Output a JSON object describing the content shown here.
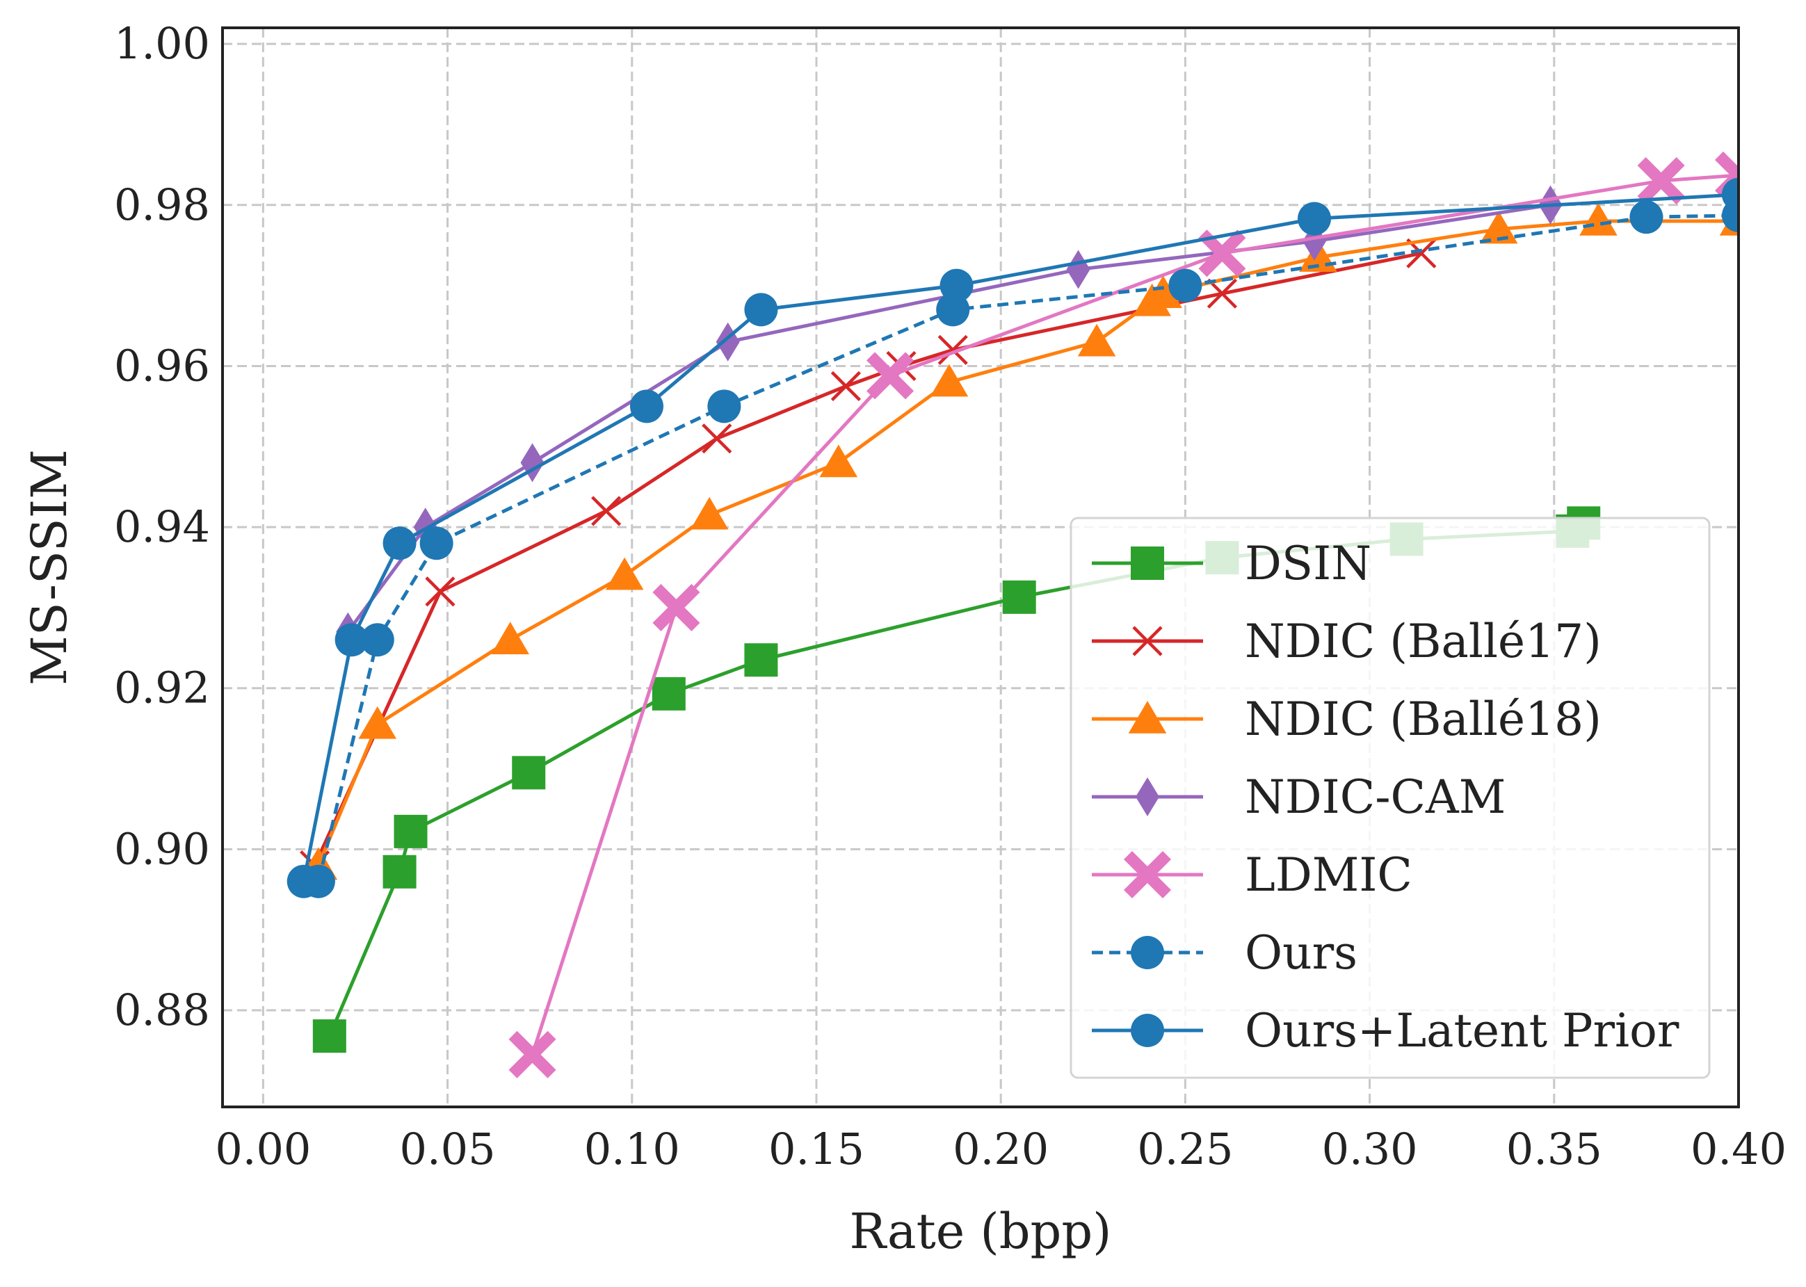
{
  "chart_data": {
    "type": "line",
    "title": "",
    "xlabel": "Rate (bpp)",
    "ylabel": "MS-SSIM",
    "xlim": [
      -0.011,
      0.4
    ],
    "ylim": [
      0.868,
      1.002
    ],
    "xticks": [
      "0.00",
      "0.05",
      "0.10",
      "0.15",
      "0.20",
      "0.25",
      "0.30",
      "0.35",
      "0.40"
    ],
    "yticks": [
      "0.88",
      "0.90",
      "0.92",
      "0.94",
      "0.96",
      "0.98",
      "1.00"
    ],
    "grid": true,
    "legend_position": "lower-right",
    "series": [
      {
        "name": "DSIN",
        "color": "#2ca02c",
        "marker": "square",
        "linestyle": "solid",
        "x": [
          0.018,
          0.037,
          0.04,
          0.072,
          0.11,
          0.135,
          0.205,
          0.26,
          0.31,
          0.355,
          0.358
        ],
        "y": [
          0.8768,
          0.8972,
          0.9022,
          0.9095,
          0.9193,
          0.9235,
          0.9313,
          0.9362,
          0.9385,
          0.9395,
          0.9405
        ]
      },
      {
        "name": "NDIC (Ballé17)",
        "color": "#d62728",
        "marker": "x",
        "linestyle": "solid",
        "x": [
          0.014,
          0.048,
          0.093,
          0.123,
          0.158,
          0.173,
          0.187,
          0.26,
          0.314
        ],
        "y": [
          0.898,
          0.932,
          0.942,
          0.951,
          0.9575,
          0.96,
          0.962,
          0.969,
          0.974
        ]
      },
      {
        "name": "NDIC (Ballé18)",
        "color": "#ff7f0e",
        "marker": "triangle",
        "linestyle": "solid",
        "x": [
          0.015,
          0.031,
          0.067,
          0.098,
          0.121,
          0.156,
          0.186,
          0.226,
          0.241,
          0.244,
          0.286,
          0.335,
          0.362,
          0.4
        ],
        "y": [
          0.898,
          0.9155,
          0.926,
          0.934,
          0.9415,
          0.948,
          0.958,
          0.963,
          0.968,
          0.969,
          0.9735,
          0.977,
          0.978,
          0.978
        ]
      },
      {
        "name": "NDIC-CAM",
        "color": "#9467bd",
        "marker": "diamond",
        "linestyle": "solid",
        "x": [
          0.023,
          0.044,
          0.073,
          0.126,
          0.221,
          0.285,
          0.349
        ],
        "y": [
          0.927,
          0.94,
          0.948,
          0.963,
          0.972,
          0.9755,
          0.98
        ]
      },
      {
        "name": "LDMIC",
        "color": "#e377c2",
        "marker": "plus_filled",
        "linestyle": "solid",
        "x": [
          0.073,
          0.112,
          0.17,
          0.26,
          0.379,
          0.4
        ],
        "y": [
          0.8745,
          0.93,
          0.9588,
          0.974,
          0.983,
          0.9837
        ]
      },
      {
        "name": "Ours",
        "color": "#1f77b4",
        "marker": "circle",
        "linestyle": "dashed",
        "x": [
          0.015,
          0.031,
          0.047,
          0.125,
          0.187,
          0.25,
          0.375,
          0.4
        ],
        "y": [
          0.896,
          0.926,
          0.938,
          0.955,
          0.967,
          0.97,
          0.9785,
          0.9787
        ]
      },
      {
        "name": "Ours+Latent Prior",
        "color": "#1f77b4",
        "marker": "circle",
        "linestyle": "solid",
        "x": [
          0.011,
          0.024,
          0.037,
          0.104,
          0.135,
          0.188,
          0.285,
          0.4
        ],
        "y": [
          0.896,
          0.926,
          0.938,
          0.955,
          0.967,
          0.97,
          0.9783,
          0.9813
        ]
      }
    ]
  }
}
